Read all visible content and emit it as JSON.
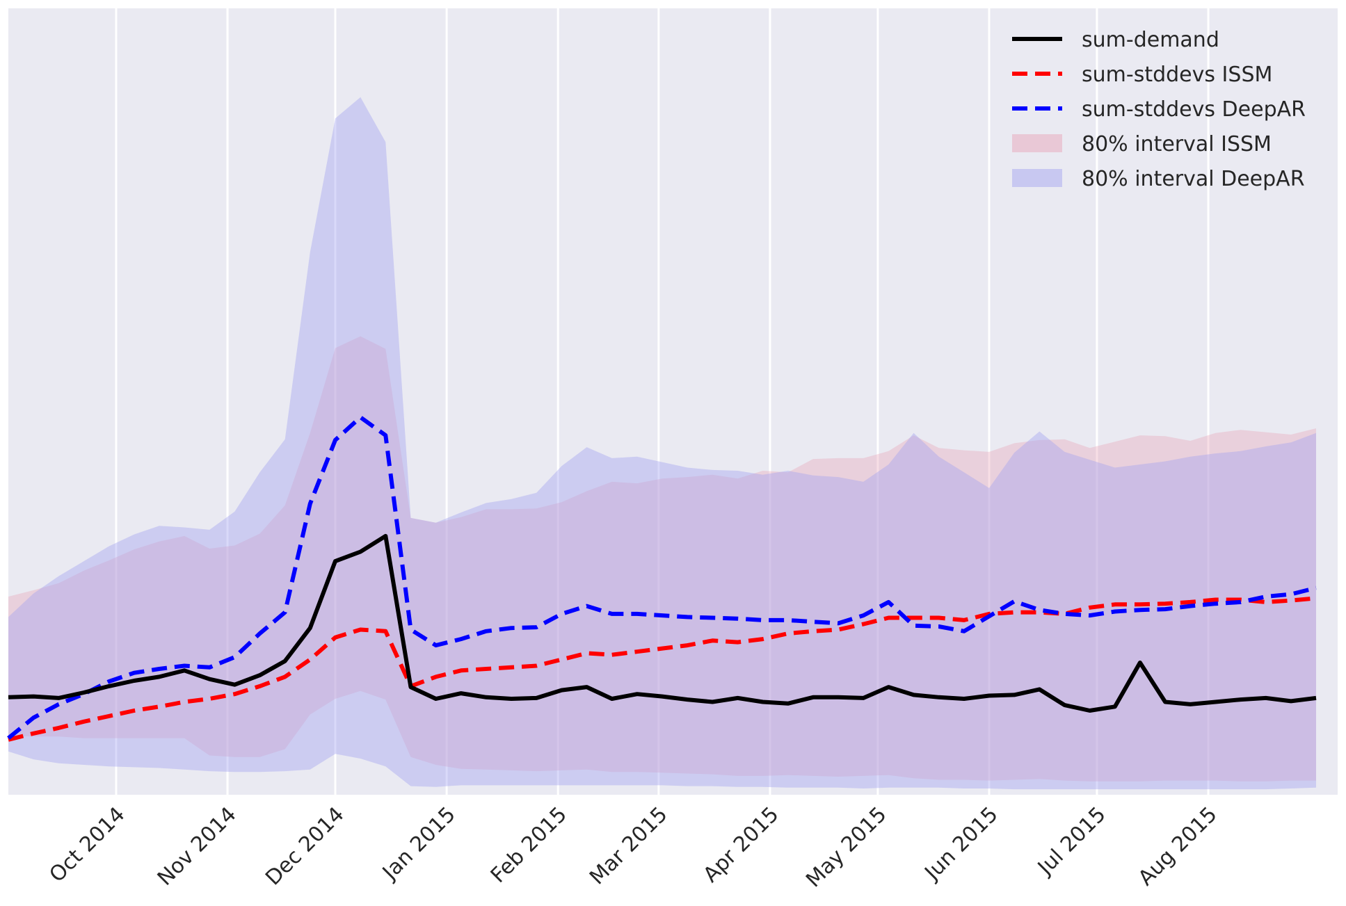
{
  "chart_data": {
    "type": "line",
    "title": "",
    "xlabel": "",
    "ylabel": "",
    "ylim": [
      0,
      10
    ],
    "grid": "vertical",
    "legend_position": "top-right",
    "x_start": "2014-09-01",
    "x_end": "2015-09-06",
    "x_step_days": 7,
    "x_ticks": [
      {
        "date": "2014-10-01",
        "label": "Oct 2014"
      },
      {
        "date": "2014-11-01",
        "label": "Nov 2014"
      },
      {
        "date": "2014-12-01",
        "label": "Dec 2014"
      },
      {
        "date": "2015-01-01",
        "label": "Jan 2015"
      },
      {
        "date": "2015-02-01",
        "label": "Feb 2015"
      },
      {
        "date": "2015-03-01",
        "label": "Mar 2015"
      },
      {
        "date": "2015-04-01",
        "label": "Apr 2015"
      },
      {
        "date": "2015-05-01",
        "label": "May 2015"
      },
      {
        "date": "2015-06-01",
        "label": "Jun 2015"
      },
      {
        "date": "2015-07-01",
        "label": "Jul 2015"
      },
      {
        "date": "2015-08-01",
        "label": "Aug 2015"
      }
    ],
    "series": [
      {
        "name": "sum-demand",
        "color": "#000000",
        "style": "solid",
        "values": [
          1.24,
          1.25,
          1.23,
          1.3,
          1.38,
          1.45,
          1.5,
          1.58,
          1.47,
          1.4,
          1.52,
          1.7,
          2.12,
          2.97,
          3.09,
          3.29,
          1.37,
          1.22,
          1.29,
          1.24,
          1.22,
          1.23,
          1.33,
          1.37,
          1.22,
          1.28,
          1.25,
          1.21,
          1.18,
          1.23,
          1.18,
          1.16,
          1.24,
          1.24,
          1.23,
          1.37,
          1.27,
          1.24,
          1.22,
          1.26,
          1.27,
          1.34,
          1.14,
          1.07,
          1.12,
          1.68,
          1.18,
          1.15,
          1.18,
          1.21,
          1.23,
          1.19,
          1.23
        ]
      },
      {
        "name": "sum-stddevs ISSM",
        "color": "#ff0000",
        "style": "dashed",
        "values": [
          0.7,
          0.78,
          0.85,
          0.93,
          1.0,
          1.07,
          1.12,
          1.18,
          1.22,
          1.28,
          1.38,
          1.5,
          1.72,
          2.0,
          2.1,
          2.08,
          1.38,
          1.5,
          1.58,
          1.6,
          1.62,
          1.64,
          1.72,
          1.8,
          1.78,
          1.82,
          1.86,
          1.9,
          1.96,
          1.94,
          1.98,
          2.05,
          2.08,
          2.1,
          2.17,
          2.25,
          2.25,
          2.25,
          2.22,
          2.3,
          2.32,
          2.32,
          2.3,
          2.38,
          2.42,
          2.42,
          2.43,
          2.45,
          2.48,
          2.48,
          2.45,
          2.47,
          2.5
        ]
      },
      {
        "name": "sum-stddevs DeepAR",
        "color": "#0000ff",
        "style": "dashed",
        "values": [
          0.72,
          0.98,
          1.15,
          1.28,
          1.44,
          1.55,
          1.6,
          1.64,
          1.62,
          1.75,
          2.05,
          2.32,
          3.7,
          4.51,
          4.8,
          4.57,
          2.1,
          1.9,
          1.98,
          2.08,
          2.12,
          2.13,
          2.3,
          2.4,
          2.3,
          2.3,
          2.28,
          2.26,
          2.25,
          2.24,
          2.22,
          2.22,
          2.2,
          2.18,
          2.28,
          2.45,
          2.15,
          2.14,
          2.08,
          2.27,
          2.46,
          2.35,
          2.3,
          2.28,
          2.33,
          2.35,
          2.36,
          2.4,
          2.43,
          2.45,
          2.52,
          2.55,
          2.63
        ]
      }
    ],
    "bands": [
      {
        "name": "80% interval ISSM",
        "color": "#e8a0b4",
        "opacity": 0.35,
        "upper": [
          2.52,
          2.6,
          2.69,
          2.85,
          2.98,
          3.12,
          3.22,
          3.29,
          3.13,
          3.17,
          3.32,
          3.68,
          4.6,
          5.68,
          5.83,
          5.67,
          3.52,
          3.46,
          3.53,
          3.63,
          3.63,
          3.64,
          3.72,
          3.86,
          3.98,
          3.96,
          4.02,
          4.04,
          4.07,
          4.02,
          4.12,
          4.1,
          4.27,
          4.28,
          4.28,
          4.37,
          4.57,
          4.41,
          4.38,
          4.36,
          4.47,
          4.51,
          4.52,
          4.41,
          4.49,
          4.57,
          4.56,
          4.5,
          4.6,
          4.64,
          4.61,
          4.58,
          4.66
        ],
        "lower": [
          0.75,
          0.74,
          0.74,
          0.72,
          0.72,
          0.72,
          0.72,
          0.72,
          0.5,
          0.48,
          0.48,
          0.58,
          1.02,
          1.22,
          1.32,
          1.21,
          0.48,
          0.38,
          0.33,
          0.32,
          0.31,
          0.3,
          0.31,
          0.32,
          0.29,
          0.29,
          0.28,
          0.27,
          0.26,
          0.24,
          0.24,
          0.25,
          0.24,
          0.23,
          0.24,
          0.25,
          0.21,
          0.19,
          0.19,
          0.18,
          0.19,
          0.2,
          0.18,
          0.17,
          0.17,
          0.17,
          0.18,
          0.18,
          0.18,
          0.17,
          0.17,
          0.18,
          0.18
        ]
      },
      {
        "name": "80% interval DeepAR",
        "color": "#a0a0f0",
        "opacity": 0.4,
        "upper": [
          2.26,
          2.56,
          2.78,
          2.97,
          3.16,
          3.31,
          3.42,
          3.4,
          3.37,
          3.6,
          4.1,
          4.52,
          6.9,
          8.6,
          8.87,
          8.3,
          3.52,
          3.46,
          3.59,
          3.71,
          3.76,
          3.84,
          4.18,
          4.42,
          4.28,
          4.3,
          4.23,
          4.16,
          4.13,
          4.12,
          4.07,
          4.12,
          4.06,
          4.04,
          3.98,
          4.2,
          4.6,
          4.3,
          4.1,
          3.9,
          4.35,
          4.62,
          4.36,
          4.26,
          4.16,
          4.2,
          4.24,
          4.3,
          4.34,
          4.37,
          4.43,
          4.48,
          4.6
        ],
        "lower": [
          0.55,
          0.45,
          0.4,
          0.38,
          0.36,
          0.35,
          0.34,
          0.32,
          0.3,
          0.29,
          0.29,
          0.3,
          0.32,
          0.52,
          0.46,
          0.36,
          0.11,
          0.1,
          0.12,
          0.12,
          0.12,
          0.12,
          0.12,
          0.12,
          0.12,
          0.12,
          0.12,
          0.11,
          0.11,
          0.1,
          0.1,
          0.09,
          0.09,
          0.09,
          0.08,
          0.09,
          0.09,
          0.09,
          0.08,
          0.08,
          0.07,
          0.07,
          0.07,
          0.07,
          0.07,
          0.07,
          0.07,
          0.07,
          0.07,
          0.07,
          0.07,
          0.08,
          0.09
        ]
      }
    ],
    "legend": [
      {
        "label": "sum-demand",
        "kind": "line",
        "color": "#000000",
        "dashed": false
      },
      {
        "label": "sum-stddevs ISSM",
        "kind": "line",
        "color": "#ff0000",
        "dashed": true
      },
      {
        "label": "sum-stddevs DeepAR",
        "kind": "line",
        "color": "#0000ff",
        "dashed": true
      },
      {
        "label": "80% interval ISSM",
        "kind": "patch",
        "color": "#e8a0b4"
      },
      {
        "label": "80% interval DeepAR",
        "kind": "patch",
        "color": "#a0a0f0"
      }
    ],
    "background_color": "#eaeaf2",
    "grid_color": "#ffffff"
  }
}
